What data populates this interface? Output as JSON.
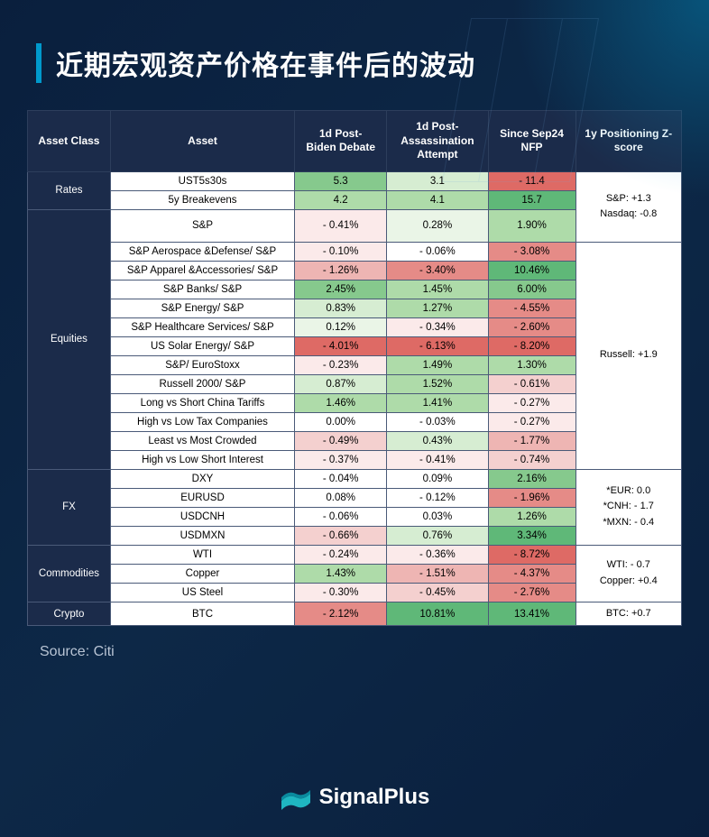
{
  "title": "近期宏观资产价格在事件后的波动",
  "source_label": "Source: Citi",
  "brand_name": "SignalPlus",
  "columns": [
    "Asset Class",
    "Asset",
    "1d Post- Biden Debate",
    "1d Post- Assassination Attempt",
    "Since Sep24 NFP",
    "1y Positioning Z-score"
  ],
  "heat_colors": {
    "g4": "#5fb878",
    "g3": "#86c98d",
    "g2": "#aedba9",
    "g1": "#d6edd2",
    "g0": "#eaf5e7",
    "n": "#ffffff",
    "r0": "#fbeaea",
    "r1": "#f4d0cf",
    "r2": "#eeb5b3",
    "r3": "#e58b87",
    "r4": "#de6a65"
  },
  "groups": [
    {
      "class": "Rates",
      "zscore": "S&P: +1.3\nNasdaq: -0.8",
      "zscore_span": 3,
      "rows": [
        {
          "asset": "UST5s30s",
          "v": [
            {
              "t": "5.3",
              "c": "g3"
            },
            {
              "t": "3.1",
              "c": "g1"
            },
            {
              "t": "- 11.4",
              "c": "r4"
            }
          ]
        },
        {
          "asset": "5y Breakevens",
          "v": [
            {
              "t": "4.2",
              "c": "g2"
            },
            {
              "t": "4.1",
              "c": "g2"
            },
            {
              "t": "15.7",
              "c": "g4"
            }
          ]
        }
      ]
    },
    {
      "class": "Equities",
      "zscore": "Russell: +1.9",
      "zscore_span": 10,
      "rows": [
        {
          "asset": "S&P",
          "v": [
            {
              "t": "- 0.41%",
              "c": "r0"
            },
            {
              "t": "0.28%",
              "c": "g0"
            },
            {
              "t": "1.90%",
              "c": "g2"
            }
          ],
          "first_in_zgroup": true
        },
        {
          "asset": "S&P Aerospace &Defense/ S&P",
          "v": [
            {
              "t": "- 0.10%",
              "c": "r0"
            },
            {
              "t": "- 0.06%",
              "c": "n"
            },
            {
              "t": "- 3.08%",
              "c": "r3"
            }
          ]
        },
        {
          "asset": "S&P Apparel &Accessories/ S&P",
          "v": [
            {
              "t": "- 1.26%",
              "c": "r2"
            },
            {
              "t": "- 3.40%",
              "c": "r3"
            },
            {
              "t": "10.46%",
              "c": "g4"
            }
          ]
        },
        {
          "asset": "S&P Banks/ S&P",
          "v": [
            {
              "t": "2.45%",
              "c": "g3"
            },
            {
              "t": "1.45%",
              "c": "g2"
            },
            {
              "t": "6.00%",
              "c": "g3"
            }
          ]
        },
        {
          "asset": "S&P Energy/ S&P",
          "v": [
            {
              "t": "0.83%",
              "c": "g1"
            },
            {
              "t": "1.27%",
              "c": "g2"
            },
            {
              "t": "- 4.55%",
              "c": "r3"
            }
          ]
        },
        {
          "asset": "S&P Healthcare Services/ S&P",
          "v": [
            {
              "t": "0.12%",
              "c": "g0"
            },
            {
              "t": "- 0.34%",
              "c": "r0"
            },
            {
              "t": "- 2.60%",
              "c": "r3"
            }
          ]
        },
        {
          "asset": "US Solar Energy/ S&P",
          "v": [
            {
              "t": "- 4.01%",
              "c": "r4"
            },
            {
              "t": "- 6.13%",
              "c": "r4"
            },
            {
              "t": "- 8.20%",
              "c": "r4"
            }
          ]
        },
        {
          "asset": "S&P/ EuroStoxx",
          "v": [
            {
              "t": "- 0.23%",
              "c": "r0"
            },
            {
              "t": "1.49%",
              "c": "g2"
            },
            {
              "t": "1.30%",
              "c": "g2"
            }
          ]
        },
        {
          "asset": "Russell 2000/ S&P",
          "v": [
            {
              "t": "0.87%",
              "c": "g1"
            },
            {
              "t": "1.52%",
              "c": "g2"
            },
            {
              "t": "- 0.61%",
              "c": "r1"
            }
          ]
        },
        {
          "asset": "Long vs Short China Tariffs",
          "v": [
            {
              "t": "1.46%",
              "c": "g2"
            },
            {
              "t": "1.41%",
              "c": "g2"
            },
            {
              "t": "- 0.27%",
              "c": "r0"
            }
          ]
        },
        {
          "asset": "High vs Low Tax Companies",
          "v": [
            {
              "t": "0.00%",
              "c": "n"
            },
            {
              "t": "- 0.03%",
              "c": "n"
            },
            {
              "t": "- 0.27%",
              "c": "r0"
            }
          ]
        },
        {
          "asset": "Least vs Most Crowded",
          "v": [
            {
              "t": "- 0.49%",
              "c": "r1"
            },
            {
              "t": "0.43%",
              "c": "g1"
            },
            {
              "t": "- 1.77%",
              "c": "r2"
            }
          ]
        },
        {
          "asset": "High vs Low Short Interest",
          "v": [
            {
              "t": "- 0.37%",
              "c": "r0"
            },
            {
              "t": "- 0.41%",
              "c": "r0"
            },
            {
              "t": "- 0.74%",
              "c": "r1"
            }
          ]
        }
      ]
    },
    {
      "class": "FX",
      "zscore": "*EUR: 0.0\n*CNH: - 1.7\n*MXN: - 0.4",
      "zscore_span": 4,
      "rows": [
        {
          "asset": "DXY",
          "v": [
            {
              "t": "- 0.04%",
              "c": "n"
            },
            {
              "t": "0.09%",
              "c": "n"
            },
            {
              "t": "2.16%",
              "c": "g3"
            }
          ],
          "first_in_zgroup": true
        },
        {
          "asset": "EURUSD",
          "v": [
            {
              "t": "0.08%",
              "c": "n"
            },
            {
              "t": "- 0.12%",
              "c": "n"
            },
            {
              "t": "- 1.96%",
              "c": "r3"
            }
          ]
        },
        {
          "asset": "USDCNH",
          "v": [
            {
              "t": "- 0.06%",
              "c": "n"
            },
            {
              "t": "0.03%",
              "c": "n"
            },
            {
              "t": "1.26%",
              "c": "g2"
            }
          ]
        },
        {
          "asset": "USDMXN",
          "v": [
            {
              "t": "- 0.66%",
              "c": "r1"
            },
            {
              "t": "0.76%",
              "c": "g1"
            },
            {
              "t": "3.34%",
              "c": "g4"
            }
          ]
        }
      ]
    },
    {
      "class": "Commodities",
      "zscore": "WTI: - 0.7\nCopper: +0.4",
      "zscore_span": 3,
      "rows": [
        {
          "asset": "WTI",
          "v": [
            {
              "t": "- 0.24%",
              "c": "r0"
            },
            {
              "t": "- 0.36%",
              "c": "r0"
            },
            {
              "t": "- 8.72%",
              "c": "r4"
            }
          ],
          "first_in_zgroup": true
        },
        {
          "asset": "Copper",
          "v": [
            {
              "t": "1.43%",
              "c": "g2"
            },
            {
              "t": "- 1.51%",
              "c": "r2"
            },
            {
              "t": "- 4.37%",
              "c": "r3"
            }
          ]
        },
        {
          "asset": "US Steel",
          "v": [
            {
              "t": "- 0.30%",
              "c": "r0"
            },
            {
              "t": "- 0.45%",
              "c": "r1"
            },
            {
              "t": "- 2.76%",
              "c": "r3"
            }
          ]
        }
      ]
    },
    {
      "class": "Crypto",
      "zscore": "BTC: +0.7",
      "zscore_span": 1,
      "rows": [
        {
          "asset": "BTC",
          "v": [
            {
              "t": "- 2.12%",
              "c": "r3"
            },
            {
              "t": "10.81%",
              "c": "g4"
            },
            {
              "t": "13.41%",
              "c": "g4"
            }
          ],
          "first_in_zgroup": true
        }
      ]
    }
  ],
  "styling": {
    "page_bg": "#0a1f3d",
    "accent": "#0099cc",
    "title_color": "#ffffff",
    "header_bg": "#1b2b4a",
    "header_fg": "#ffffff",
    "border_color": "#4a5a78",
    "title_fontsize": 30,
    "table_fontsize": 12
  }
}
